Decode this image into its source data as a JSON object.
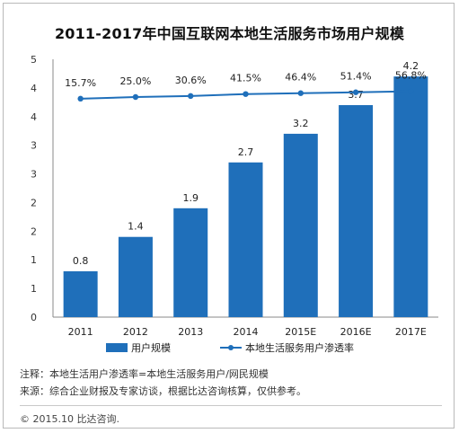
{
  "chart_data": {
    "type": "bar+line",
    "title": "2011-2017年中国互联网本地生活服务市场用户规模",
    "categories": [
      "2011",
      "2012",
      "2013",
      "2014",
      "2015E",
      "2016E",
      "2017E"
    ],
    "y_tick_labels": [
      "0",
      "1",
      "1",
      "2",
      "2",
      "3",
      "3",
      "4",
      "4",
      "5"
    ],
    "ylim": [
      0,
      4.5
    ],
    "grid": false,
    "legend_position": "bottom",
    "series": [
      {
        "name": "用户规模",
        "type": "bar",
        "color": "#1f6fba",
        "values": [
          0.8,
          1.4,
          1.9,
          2.7,
          3.2,
          3.7,
          4.2
        ],
        "labels": [
          "0.8",
          "1.4",
          "1.9",
          "2.7",
          "3.2",
          "3.7",
          "4.2"
        ]
      },
      {
        "name": "本地生活服务用户渗透率",
        "type": "line",
        "color": "#1f6fba",
        "values": [
          15.7,
          25.0,
          30.6,
          41.5,
          46.4,
          51.4,
          56.8
        ],
        "labels": [
          "15.7%",
          "25.0%",
          "30.6%",
          "41.5%",
          "46.4%",
          "51.4%",
          "56.8%"
        ]
      }
    ]
  },
  "notes": {
    "note_line": "注释：本地生活用户渗透率=本地生活服务用户/网民规模",
    "source_line": "来源：综合企业财报及专家访谈，根据比达咨询核算，仅供参考。"
  },
  "footer": {
    "copyright": "© 2015.10  比达咨询."
  }
}
